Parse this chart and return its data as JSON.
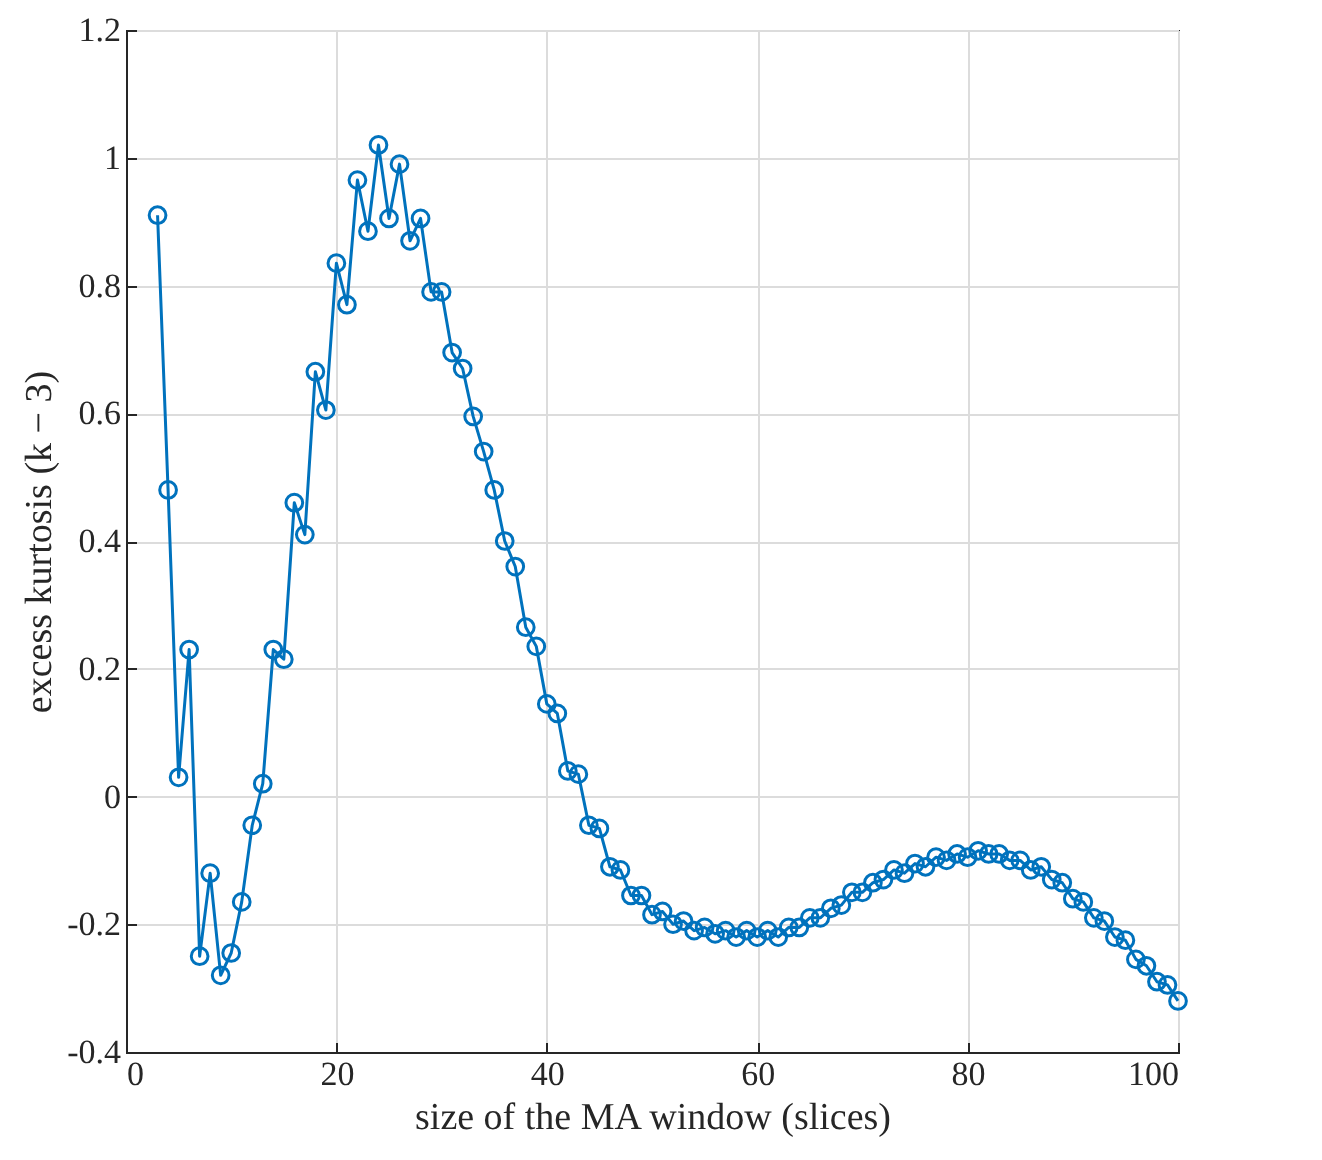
{
  "chart_data": {
    "type": "line",
    "xlabel": "size of the MA window (slices)",
    "ylabel": "excess kurtosis (k − 3)",
    "x": [
      3,
      4,
      5,
      6,
      7,
      8,
      9,
      10,
      11,
      12,
      13,
      14,
      15,
      16,
      17,
      18,
      19,
      20,
      21,
      22,
      23,
      24,
      25,
      26,
      27,
      28,
      29,
      30,
      31,
      32,
      33,
      34,
      35,
      36,
      37,
      38,
      39,
      40,
      41,
      42,
      43,
      44,
      45,
      46,
      47,
      48,
      49,
      50,
      51,
      52,
      53,
      54,
      55,
      56,
      57,
      58,
      59,
      60,
      61,
      62,
      63,
      64,
      65,
      66,
      67,
      68,
      69,
      70,
      71,
      72,
      73,
      74,
      75,
      76,
      77,
      78,
      79,
      80,
      81,
      82,
      83,
      84,
      85,
      86,
      87,
      88,
      89,
      90,
      91,
      92,
      93,
      94,
      95,
      96,
      97,
      98,
      99,
      100
    ],
    "series": [
      {
        "color": "#0072bd",
        "values": [
          0.91,
          0.48,
          0.03,
          0.23,
          -0.25,
          -0.12,
          -0.28,
          -0.245,
          -0.165,
          -0.045,
          0.02,
          0.23,
          0.215,
          0.46,
          0.41,
          0.665,
          0.605,
          0.835,
          0.77,
          0.965,
          0.885,
          1.02,
          0.905,
          0.99,
          0.87,
          0.905,
          0.79,
          0.79,
          0.695,
          0.67,
          0.595,
          0.54,
          0.48,
          0.4,
          0.36,
          0.265,
          0.235,
          0.145,
          0.13,
          0.04,
          0.035,
          -0.045,
          -0.05,
          -0.11,
          -0.115,
          -0.155,
          -0.155,
          -0.185,
          -0.18,
          -0.2,
          -0.195,
          -0.21,
          -0.205,
          -0.215,
          -0.21,
          -0.22,
          -0.21,
          -0.22,
          -0.21,
          -0.22,
          -0.205,
          -0.205,
          -0.19,
          -0.19,
          -0.175,
          -0.17,
          -0.15,
          -0.15,
          -0.135,
          -0.13,
          -0.115,
          -0.12,
          -0.105,
          -0.11,
          -0.095,
          -0.1,
          -0.09,
          -0.095,
          -0.085,
          -0.09,
          -0.09,
          -0.1,
          -0.1,
          -0.115,
          -0.11,
          -0.13,
          -0.135,
          -0.16,
          -0.165,
          -0.19,
          -0.195,
          -0.22,
          -0.225,
          -0.255,
          -0.265,
          -0.29,
          -0.295,
          -0.32
        ]
      }
    ],
    "xlim": [
      0,
      100
    ],
    "xticks": [
      0,
      20,
      40,
      60,
      80,
      100
    ],
    "ylim": [
      -0.4,
      1.2
    ],
    "yticks": [
      -0.4,
      -0.2,
      0,
      0.2,
      0.4,
      0.6,
      0.8,
      1,
      1.2
    ],
    "grid": true,
    "marker": "circle",
    "line_style": "solid"
  }
}
